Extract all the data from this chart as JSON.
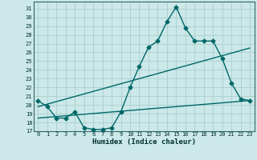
{
  "xlabel": "Humidex (Indice chaleur)",
  "background_color": "#cce8e8",
  "grid_color": "#aacece",
  "line_color": "#006868",
  "xlim": [
    -0.5,
    23.5
  ],
  "ylim": [
    17,
    31.8
  ],
  "yticks": [
    17,
    18,
    19,
    20,
    21,
    22,
    23,
    24,
    25,
    26,
    27,
    28,
    29,
    30,
    31
  ],
  "xticks": [
    0,
    1,
    2,
    3,
    4,
    5,
    6,
    7,
    8,
    9,
    10,
    11,
    12,
    13,
    14,
    15,
    16,
    17,
    18,
    19,
    20,
    21,
    22,
    23
  ],
  "line1_x": [
    0,
    1,
    2,
    3,
    4,
    5,
    6,
    7,
    8,
    9,
    10,
    11,
    12,
    13,
    14,
    15,
    16,
    17,
    18,
    19,
    20,
    21,
    22,
    23
  ],
  "line1_y": [
    20.5,
    19.8,
    18.5,
    18.5,
    19.2,
    17.4,
    17.2,
    17.2,
    17.4,
    19.2,
    22.0,
    24.4,
    26.6,
    27.3,
    29.5,
    31.2,
    28.8,
    27.3,
    27.3,
    27.3,
    25.3,
    22.5,
    20.7,
    20.5
  ],
  "line2_x": [
    0,
    23
  ],
  "line2_y": [
    19.8,
    26.5
  ],
  "line3_x": [
    0,
    23
  ],
  "line3_y": [
    18.5,
    20.5
  ],
  "marker": "D",
  "marker_size": 2.5,
  "linewidth": 1.0
}
